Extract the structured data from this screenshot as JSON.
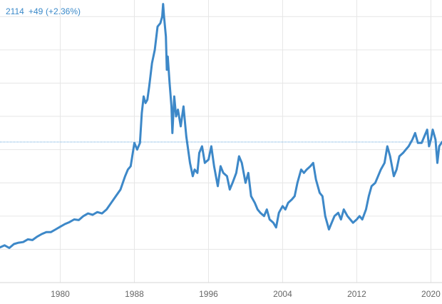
{
  "readout": {
    "value": "2114",
    "change": "+49",
    "change_pct": "(+2.36%)"
  },
  "colors": {
    "line": "#3d88c8",
    "grid": "#e6e6e6",
    "last_value_line": "#5fa3dc",
    "readout_text": "#3a89c9",
    "tick_text": "#666666"
  },
  "chart_data": {
    "type": "line",
    "title": "",
    "xlabel": "",
    "ylabel": "",
    "x_ticks": [
      1980,
      1988,
      1996,
      2004,
      2012,
      2020
    ],
    "x_tick_labels": [
      "1980",
      "1988",
      "1996",
      "2004",
      "2012",
      "2020"
    ],
    "xlim": [
      1973.5,
      2021.2
    ],
    "ylim": [
      0,
      4250
    ],
    "y_grid": [
      500,
      1000,
      1500,
      2000,
      2500,
      3000,
      3500,
      4000
    ],
    "grid": true,
    "last_value": 2114,
    "series": [
      {
        "values": [
          [
            1973.5,
            530
          ],
          [
            1974.0,
            560
          ],
          [
            1974.5,
            520
          ],
          [
            1975.0,
            580
          ],
          [
            1975.5,
            600
          ],
          [
            1976.0,
            610
          ],
          [
            1976.5,
            650
          ],
          [
            1977.0,
            640
          ],
          [
            1977.5,
            690
          ],
          [
            1978.0,
            730
          ],
          [
            1978.5,
            760
          ],
          [
            1979.0,
            760
          ],
          [
            1979.5,
            800
          ],
          [
            1980.0,
            840
          ],
          [
            1980.5,
            880
          ],
          [
            1981.0,
            910
          ],
          [
            1981.5,
            950
          ],
          [
            1982.0,
            940
          ],
          [
            1982.5,
            1000
          ],
          [
            1983.0,
            1040
          ],
          [
            1983.5,
            1020
          ],
          [
            1984.0,
            1060
          ],
          [
            1984.5,
            1040
          ],
          [
            1985.0,
            1100
          ],
          [
            1985.5,
            1200
          ],
          [
            1986.0,
            1300
          ],
          [
            1986.5,
            1400
          ],
          [
            1987.0,
            1600
          ],
          [
            1987.3,
            1700
          ],
          [
            1987.6,
            1750
          ],
          [
            1988.0,
            2100
          ],
          [
            1988.3,
            2000
          ],
          [
            1988.6,
            2100
          ],
          [
            1988.8,
            2550
          ],
          [
            1989.0,
            2800
          ],
          [
            1989.2,
            2700
          ],
          [
            1989.4,
            2750
          ],
          [
            1989.6,
            2950
          ],
          [
            1989.9,
            3300
          ],
          [
            1990.2,
            3500
          ],
          [
            1990.5,
            3850
          ],
          [
            1990.8,
            3900
          ],
          [
            1991.0,
            4000
          ],
          [
            1991.1,
            4190
          ],
          [
            1991.2,
            4000
          ],
          [
            1991.4,
            3700
          ],
          [
            1991.5,
            3200
          ],
          [
            1991.6,
            3400
          ],
          [
            1991.8,
            3000
          ],
          [
            1992.0,
            2650
          ],
          [
            1992.1,
            2250
          ],
          [
            1992.3,
            2800
          ],
          [
            1992.5,
            2500
          ],
          [
            1992.7,
            2600
          ],
          [
            1993.0,
            2350
          ],
          [
            1993.3,
            2650
          ],
          [
            1993.6,
            2200
          ],
          [
            1994.0,
            1800
          ],
          [
            1994.3,
            1600
          ],
          [
            1994.5,
            1700
          ],
          [
            1994.8,
            1650
          ],
          [
            1995.0,
            1950
          ],
          [
            1995.3,
            2050
          ],
          [
            1995.6,
            1800
          ],
          [
            1996.0,
            1850
          ],
          [
            1996.3,
            2050
          ],
          [
            1996.6,
            1750
          ],
          [
            1997.0,
            1450
          ],
          [
            1997.3,
            1750
          ],
          [
            1997.6,
            1650
          ],
          [
            1998.0,
            1600
          ],
          [
            1998.3,
            1400
          ],
          [
            1998.6,
            1500
          ],
          [
            1999.0,
            1650
          ],
          [
            1999.3,
            1900
          ],
          [
            1999.6,
            1800
          ],
          [
            2000.0,
            1500
          ],
          [
            2000.3,
            1650
          ],
          [
            2000.6,
            1300
          ],
          [
            2001.0,
            1200
          ],
          [
            2001.3,
            1100
          ],
          [
            2001.6,
            1050
          ],
          [
            2002.0,
            1000
          ],
          [
            2002.3,
            1100
          ],
          [
            2002.6,
            950
          ],
          [
            2003.0,
            900
          ],
          [
            2003.3,
            830
          ],
          [
            2003.6,
            1050
          ],
          [
            2004.0,
            1150
          ],
          [
            2004.3,
            1100
          ],
          [
            2004.6,
            1200
          ],
          [
            2005.0,
            1250
          ],
          [
            2005.3,
            1300
          ],
          [
            2005.6,
            1500
          ],
          [
            2006.0,
            1700
          ],
          [
            2006.3,
            1650
          ],
          [
            2006.6,
            1700
          ],
          [
            2007.0,
            1750
          ],
          [
            2007.3,
            1800
          ],
          [
            2007.6,
            1550
          ],
          [
            2008.0,
            1350
          ],
          [
            2008.3,
            1300
          ],
          [
            2008.6,
            1000
          ],
          [
            2009.0,
            800
          ],
          [
            2009.3,
            900
          ],
          [
            2009.6,
            1000
          ],
          [
            2010.0,
            1050
          ],
          [
            2010.3,
            950
          ],
          [
            2010.6,
            1100
          ],
          [
            2011.0,
            1000
          ],
          [
            2011.3,
            950
          ],
          [
            2011.6,
            900
          ],
          [
            2012.0,
            950
          ],
          [
            2012.3,
            1000
          ],
          [
            2012.6,
            950
          ],
          [
            2013.0,
            1100
          ],
          [
            2013.3,
            1300
          ],
          [
            2013.6,
            1450
          ],
          [
            2014.0,
            1500
          ],
          [
            2014.3,
            1600
          ],
          [
            2014.6,
            1700
          ],
          [
            2015.0,
            1800
          ],
          [
            2015.3,
            2050
          ],
          [
            2015.6,
            1900
          ],
          [
            2016.0,
            1600
          ],
          [
            2016.3,
            1700
          ],
          [
            2016.6,
            1900
          ],
          [
            2017.0,
            1950
          ],
          [
            2017.3,
            2000
          ],
          [
            2017.6,
            2050
          ],
          [
            2018.0,
            2150
          ],
          [
            2018.3,
            2250
          ],
          [
            2018.6,
            2100
          ],
          [
            2019.0,
            2100
          ],
          [
            2019.3,
            2200
          ],
          [
            2019.6,
            2300
          ],
          [
            2019.8,
            2050
          ],
          [
            2020.0,
            2150
          ],
          [
            2020.2,
            2300
          ],
          [
            2020.5,
            2150
          ],
          [
            2020.7,
            1800
          ],
          [
            2020.9,
            2050
          ],
          [
            2021.2,
            2114
          ]
        ]
      }
    ]
  }
}
